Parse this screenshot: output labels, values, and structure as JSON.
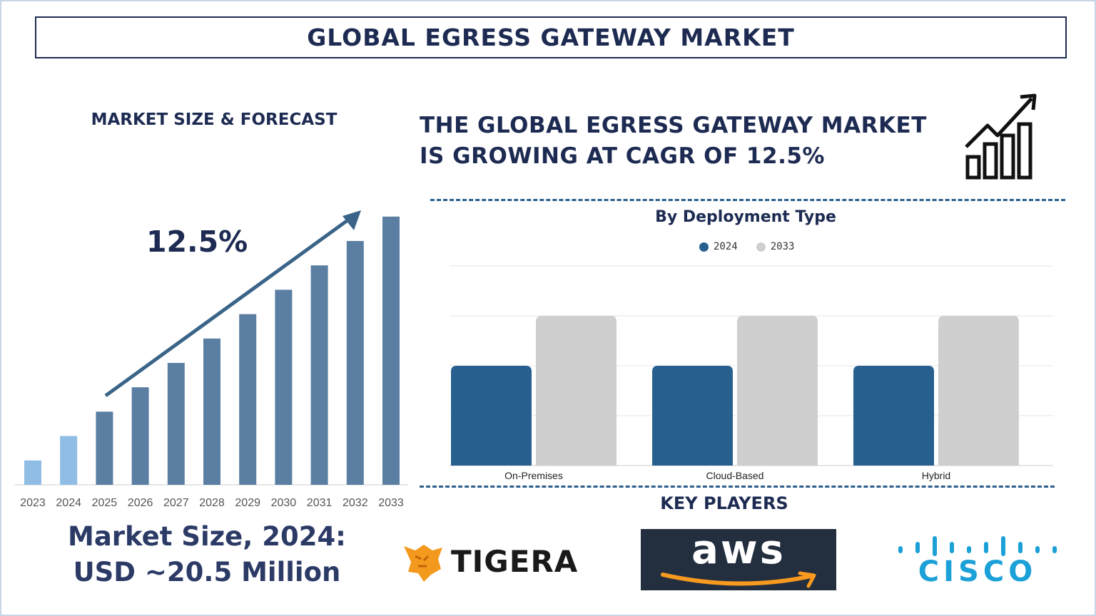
{
  "title": "GLOBAL EGRESS GATEWAY MARKET",
  "market_size_heading": "MARKET SIZE & FORECAST",
  "cagr_headline": {
    "line1": "THE GLOBAL EGRESS GATEWAY MARKET",
    "line2": "IS GROWING AT CAGR OF 12.5%"
  },
  "cagr_badge": "12.5%",
  "market_size": {
    "line1": "Market Size, 2024:",
    "line2": "USD ~20.5 Million"
  },
  "key_players_heading": "KEY PLAYERS",
  "key_players": [
    {
      "name": "TIGERA",
      "icon": "tiger-icon"
    },
    {
      "name": "aws",
      "icon": "amazon-smile-icon"
    },
    {
      "name": "CISCO",
      "icon": "cisco-bars-icon"
    }
  ],
  "colors": {
    "navy": "#1d2b52",
    "bar_light": "#8fbde3",
    "bar_dark": "#5b7fa3",
    "arrow": "#3a6488",
    "series_2024": "#27608f",
    "series_2033": "#cfcfcf",
    "dashed": "#2b5f8c"
  },
  "chart_data": [
    {
      "type": "bar",
      "title": "MARKET SIZE & FORECAST",
      "categories": [
        "2023",
        "2024",
        "2025",
        "2026",
        "2027",
        "2028",
        "2029",
        "2030",
        "2031",
        "2032",
        "2033"
      ],
      "values": [
        9,
        18,
        27,
        36,
        45,
        54,
        63,
        72,
        81,
        90,
        99
      ],
      "highlight_years": [
        "2023",
        "2024"
      ],
      "annotation": "12.5%",
      "ylim": [
        0,
        100
      ],
      "grid": false
    },
    {
      "type": "bar",
      "title": "By Deployment Type",
      "categories": [
        "On-Premises",
        "Cloud-Based",
        "Hybrid"
      ],
      "series": [
        {
          "name": "2024",
          "values": [
            2,
            2,
            2
          ]
        },
        {
          "name": "2033",
          "values": [
            3,
            3,
            3
          ]
        }
      ],
      "ylim": [
        0,
        4
      ],
      "grid": true,
      "legend": "top-center"
    }
  ]
}
